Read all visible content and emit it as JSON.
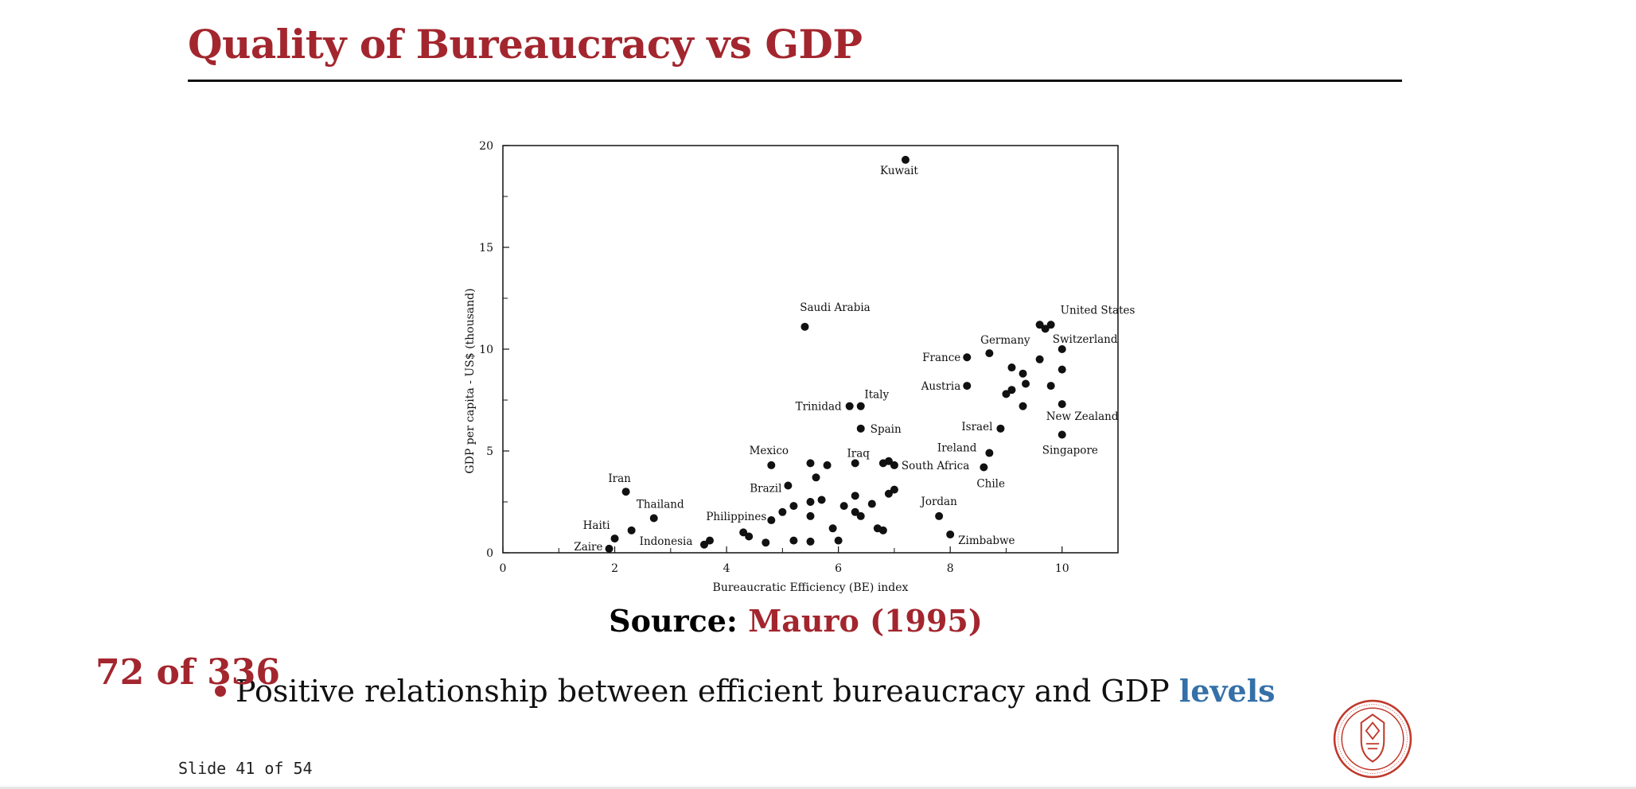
{
  "slide": {
    "title": "Quality of Bureaucracy vs GDP",
    "source_label": "Source:",
    "source_ref": "Mauro (1995)",
    "counter": "72 of 336",
    "bullet_text": "Positive relationship between efficient bureaucracy and GDP ",
    "bullet_highlight": "levels",
    "slide_number": "Slide 41 of 54",
    "seal_name": "seal-icon",
    "colors": {
      "title": "#a3262e",
      "highlight": "#3570a8"
    }
  },
  "chart_data": {
    "type": "scatter",
    "title": "",
    "xlabel": "Bureaucratic Efficiency (BE) index",
    "ylabel": "GDP per capita - US$ (thousand)",
    "xlim": [
      0,
      11
    ],
    "ylim": [
      0,
      20
    ],
    "xticks": [
      "0",
      "2",
      "4",
      "6",
      "8",
      "10"
    ],
    "yticks": [
      "0",
      "5",
      "10",
      "15",
      "20"
    ],
    "grid": false,
    "labeled_points": [
      {
        "label": "Kuwait",
        "x": 7.2,
        "y": 19.3
      },
      {
        "label": "Saudi Arabia",
        "x": 5.4,
        "y": 11.1
      },
      {
        "label": "United States",
        "x": 9.8,
        "y": 11.2
      },
      {
        "label": "Switzerland",
        "x": 10.0,
        "y": 10.0
      },
      {
        "label": "Germany",
        "x": 8.7,
        "y": 9.8
      },
      {
        "label": "France",
        "x": 8.3,
        "y": 9.6
      },
      {
        "label": "Austria",
        "x": 8.3,
        "y": 8.2
      },
      {
        "label": "Italy",
        "x": 6.4,
        "y": 7.2
      },
      {
        "label": "Trinidad",
        "x": 6.2,
        "y": 7.2
      },
      {
        "label": "New Zealand",
        "x": 10.0,
        "y": 7.3
      },
      {
        "label": "Spain",
        "x": 6.4,
        "y": 6.1
      },
      {
        "label": "Israel",
        "x": 8.9,
        "y": 6.1
      },
      {
        "label": "Singapore",
        "x": 10.0,
        "y": 5.8
      },
      {
        "label": "Ireland",
        "x": 8.7,
        "y": 4.9
      },
      {
        "label": "Iraq",
        "x": 6.3,
        "y": 4.4
      },
      {
        "label": "Mexico",
        "x": 4.8,
        "y": 4.3
      },
      {
        "label": "South Africa",
        "x": 7.0,
        "y": 4.3
      },
      {
        "label": "Chile",
        "x": 8.6,
        "y": 4.2
      },
      {
        "label": "Iran",
        "x": 2.2,
        "y": 3.0
      },
      {
        "label": "Brazil",
        "x": 5.1,
        "y": 3.3
      },
      {
        "label": "Thailand",
        "x": 2.7,
        "y": 1.7
      },
      {
        "label": "Jordan",
        "x": 7.8,
        "y": 1.8
      },
      {
        "label": "Philippines",
        "x": 4.8,
        "y": 1.6
      },
      {
        "label": "Haiti",
        "x": 2.0,
        "y": 0.7
      },
      {
        "label": "Indonesia",
        "x": 2.3,
        "y": 1.1
      },
      {
        "label": "Zimbabwe",
        "x": 8.0,
        "y": 0.9
      },
      {
        "label": "Zaire",
        "x": 1.9,
        "y": 0.2
      }
    ],
    "unlabeled_points": [
      {
        "x": 9.6,
        "y": 11.2
      },
      {
        "x": 9.7,
        "y": 11.0
      },
      {
        "x": 9.6,
        "y": 9.5
      },
      {
        "x": 9.1,
        "y": 9.1
      },
      {
        "x": 10.0,
        "y": 9.0
      },
      {
        "x": 9.3,
        "y": 8.8
      },
      {
        "x": 9.35,
        "y": 8.3
      },
      {
        "x": 9.8,
        "y": 8.2
      },
      {
        "x": 9.1,
        "y": 8.0
      },
      {
        "x": 9.0,
        "y": 7.8
      },
      {
        "x": 9.3,
        "y": 7.2
      },
      {
        "x": 5.5,
        "y": 4.4
      },
      {
        "x": 5.8,
        "y": 4.3
      },
      {
        "x": 6.8,
        "y": 4.4
      },
      {
        "x": 6.9,
        "y": 4.5
      },
      {
        "x": 5.6,
        "y": 3.7
      },
      {
        "x": 7.0,
        "y": 3.1
      },
      {
        "x": 6.9,
        "y": 2.9
      },
      {
        "x": 6.3,
        "y": 2.8
      },
      {
        "x": 5.5,
        "y": 2.5
      },
      {
        "x": 5.7,
        "y": 2.6
      },
      {
        "x": 6.1,
        "y": 2.3
      },
      {
        "x": 6.6,
        "y": 2.4
      },
      {
        "x": 5.2,
        "y": 2.3
      },
      {
        "x": 5.0,
        "y": 2.0
      },
      {
        "x": 5.5,
        "y": 1.8
      },
      {
        "x": 6.3,
        "y": 2.0
      },
      {
        "x": 6.4,
        "y": 1.8
      },
      {
        "x": 6.7,
        "y": 1.2
      },
      {
        "x": 6.8,
        "y": 1.1
      },
      {
        "x": 5.9,
        "y": 1.2
      },
      {
        "x": 4.3,
        "y": 1.0
      },
      {
        "x": 4.4,
        "y": 0.8
      },
      {
        "x": 5.2,
        "y": 0.6
      },
      {
        "x": 4.7,
        "y": 0.5
      },
      {
        "x": 5.5,
        "y": 0.55
      },
      {
        "x": 6.0,
        "y": 0.6
      },
      {
        "x": 3.7,
        "y": 0.6
      },
      {
        "x": 3.6,
        "y": 0.4
      }
    ]
  }
}
